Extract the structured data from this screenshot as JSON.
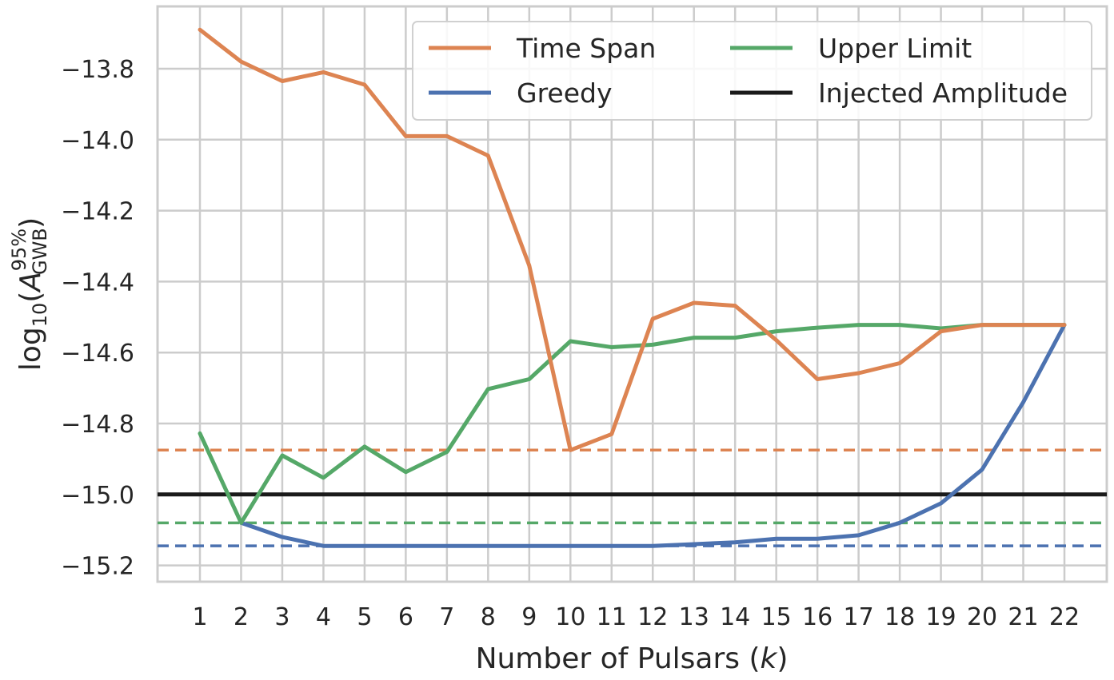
{
  "chart_data": {
    "type": "line",
    "xlabel": "Number of Pulsars (k)",
    "ylabel": "log10(A GWB 95%)",
    "x": [
      1,
      2,
      3,
      4,
      5,
      6,
      7,
      8,
      9,
      10,
      11,
      12,
      13,
      14,
      15,
      16,
      17,
      18,
      19,
      20,
      21,
      22
    ],
    "ylim": [
      -15.24,
      -13.66
    ],
    "y_ticks": [
      -13.8,
      -14.0,
      -14.2,
      -14.4,
      -14.6,
      -14.8,
      -15.0,
      -15.2
    ],
    "y_tick_labels": [
      "−13.8",
      "−14.0",
      "−14.2",
      "−14.4",
      "−14.6",
      "−14.8",
      "−15.0",
      "−15.2"
    ],
    "x_tick_labels": [
      "1",
      "2",
      "3",
      "4",
      "5",
      "6",
      "7",
      "8",
      "9",
      "10",
      "11",
      "12",
      "13",
      "14",
      "15",
      "16",
      "17",
      "18",
      "19",
      "20",
      "21",
      "22"
    ],
    "grid": true,
    "legend_placement": "top-right",
    "series": [
      {
        "name": "Time Span",
        "color": "#dd8452",
        "values": [
          -13.69,
          -13.78,
          -13.835,
          -13.81,
          -13.845,
          -13.99,
          -13.99,
          -14.045,
          -14.355,
          -14.875,
          -14.83,
          -14.505,
          -14.46,
          -14.468,
          -14.565,
          -14.675,
          -14.658,
          -14.63,
          -14.54,
          -14.522,
          -14.522,
          -14.522
        ]
      },
      {
        "name": "Greedy",
        "color": "#4c72b0",
        "values": [
          null,
          -15.08,
          -15.12,
          -15.145,
          -15.145,
          -15.145,
          -15.145,
          -15.145,
          -15.145,
          -15.145,
          -15.145,
          -15.145,
          -15.14,
          -15.135,
          -15.125,
          -15.125,
          -15.115,
          -15.08,
          -15.025,
          -14.93,
          -14.74,
          -14.522
        ]
      },
      {
        "name": "Upper Limit",
        "color": "#55a868",
        "values": [
          -14.828,
          -15.08,
          -14.89,
          -14.953,
          -14.865,
          -14.937,
          -14.88,
          -14.703,
          -14.675,
          -14.568,
          -14.585,
          -14.578,
          -14.558,
          -14.558,
          -14.54,
          -14.53,
          -14.522,
          -14.522,
          -14.532,
          -14.522,
          -14.522,
          -14.522
        ]
      },
      {
        "name": "Injected Amplitude",
        "color": "#1a1a1a",
        "constant": -15.0
      }
    ],
    "reference_lines": [
      {
        "color": "#dd8452",
        "value": -14.875,
        "style": "dashed"
      },
      {
        "color": "#55a868",
        "value": -15.08,
        "style": "dashed"
      },
      {
        "color": "#4c72b0",
        "value": -15.145,
        "style": "dashed"
      }
    ],
    "legend": {
      "columns": [
        [
          {
            "label": "Time Span",
            "color": "#dd8452"
          },
          {
            "label": "Greedy",
            "color": "#4c72b0"
          }
        ],
        [
          {
            "label": "Upper Limit",
            "color": "#55a868"
          },
          {
            "label": "Injected Amplitude",
            "color": "#1a1a1a"
          }
        ]
      ]
    }
  }
}
